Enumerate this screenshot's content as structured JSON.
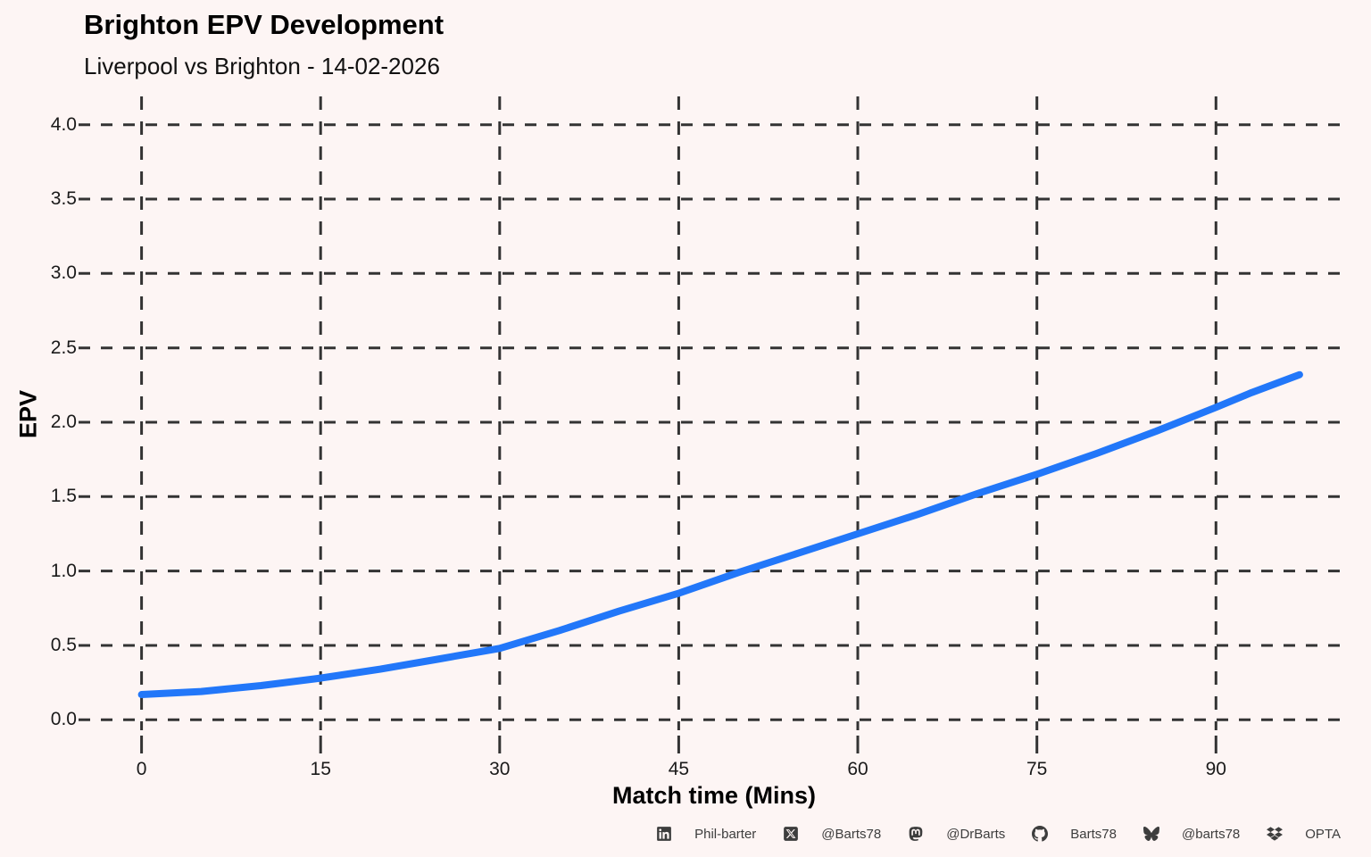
{
  "header": {
    "title": "Brighton EPV Development",
    "subtitle": "Liverpool vs Brighton - 14-02-2026"
  },
  "chart_data": {
    "type": "line",
    "title": "Brighton EPV Development",
    "subtitle": "Liverpool vs Brighton - 14-02-2026",
    "xlabel": "Match time (Mins)",
    "ylabel": "EPV",
    "xlim": [
      0,
      97
    ],
    "ylim": [
      0.0,
      4.0
    ],
    "x_ticks": [
      0,
      15,
      30,
      45,
      60,
      75,
      90
    ],
    "y_ticks": [
      "0.0",
      "0.5",
      "1.0",
      "1.5",
      "2.0",
      "2.5",
      "3.0",
      "3.5",
      "4.0"
    ],
    "grid": "dashed",
    "legend": "none",
    "line_color": "#2277f9",
    "series": [
      {
        "name": "Brighton EPV",
        "x": [
          0,
          5,
          10,
          15,
          20,
          25,
          30,
          35,
          40,
          45,
          50,
          55,
          60,
          65,
          70,
          75,
          80,
          85,
          90,
          93,
          97
        ],
        "y": [
          0.17,
          0.19,
          0.23,
          0.28,
          0.34,
          0.41,
          0.48,
          0.6,
          0.73,
          0.85,
          0.99,
          1.12,
          1.25,
          1.38,
          1.52,
          1.65,
          1.79,
          1.94,
          2.1,
          2.2,
          2.32
        ]
      }
    ]
  },
  "footer": {
    "items": [
      {
        "icon": "linkedin-icon",
        "label": "Phil-barter"
      },
      {
        "icon": "x-icon",
        "label": "@Barts78"
      },
      {
        "icon": "mastodon-icon",
        "label": "@DrBarts"
      },
      {
        "icon": "github-icon",
        "label": "Barts78"
      },
      {
        "icon": "bluesky-icon",
        "label": "@barts78"
      },
      {
        "icon": "dropbox-icon",
        "label": "OPTA"
      }
    ]
  },
  "colors": {
    "background": "#fdf5f4",
    "grid": "#333333",
    "line": "#2277f9",
    "text": "#000000",
    "footer_text": "#3d3d3d"
  }
}
